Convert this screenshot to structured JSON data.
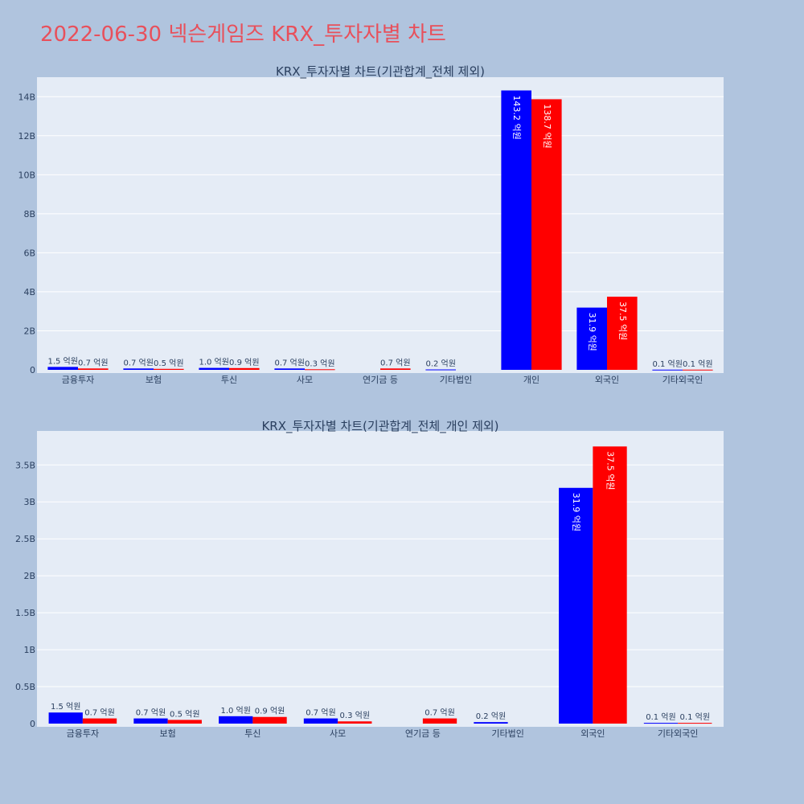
{
  "page": {
    "title": "2022-06-30 넥슨게임즈 KRX_투자자별 차트"
  },
  "colors": {
    "background": "#b0c4de",
    "plot_background": "#e5ecf6",
    "title": "#e8505b",
    "series_buy": "#0000ff",
    "series_sell": "#ff0000"
  },
  "chart_data": [
    {
      "type": "bar",
      "title": "KRX_투자자별 차트(기관합계_전체 제외)",
      "categories": [
        "금융투자",
        "보험",
        "투신",
        "사모",
        "연기금 등",
        "기타법인",
        "개인",
        "외국인",
        "기타외국인"
      ],
      "series": [
        {
          "color": "#0000ff",
          "values": [
            150000000,
            70000000,
            100000000,
            70000000,
            0,
            20000000,
            14320000000,
            3190000000,
            10000000
          ],
          "labels": [
            "1.5 억원",
            "0.7 억원",
            "1.0 억원",
            "0.7 억원",
            "",
            "0.2 억원",
            "143.2 억원",
            "31.9 억원",
            "0.1 억원"
          ]
        },
        {
          "color": "#ff0000",
          "values": [
            70000000,
            50000000,
            90000000,
            30000000,
            70000000,
            0,
            13870000000,
            3750000000,
            10000000
          ],
          "labels": [
            "0.7 억원",
            "0.5 억원",
            "0.9 억원",
            "0.3 억원",
            "0.7 억원",
            "",
            "138.7 억원",
            "37.5 억원",
            "0.1 억원"
          ]
        }
      ],
      "ylim": [
        0,
        15000000000
      ],
      "yticks": [
        0,
        2000000000,
        4000000000,
        6000000000,
        8000000000,
        10000000000,
        12000000000,
        14000000000
      ],
      "ytick_labels": [
        "0",
        "2B",
        "4B",
        "6B",
        "8B",
        "10B",
        "12B",
        "14B"
      ],
      "grid": true
    },
    {
      "type": "bar",
      "title": "KRX_투자자별 차트(기관합계_전체_개인 제외)",
      "categories": [
        "금융투자",
        "보험",
        "투신",
        "사모",
        "연기금 등",
        "기타법인",
        "외국인",
        "기타외국인"
      ],
      "series": [
        {
          "color": "#0000ff",
          "values": [
            150000000,
            70000000,
            100000000,
            70000000,
            0,
            20000000,
            3190000000,
            10000000
          ],
          "labels": [
            "1.5 억원",
            "0.7 억원",
            "1.0 억원",
            "0.7 억원",
            "",
            "0.2 억원",
            "31.9 억원",
            "0.1 억원"
          ]
        },
        {
          "color": "#ff0000",
          "values": [
            70000000,
            50000000,
            90000000,
            30000000,
            70000000,
            0,
            3750000000,
            10000000
          ],
          "labels": [
            "0.7 억원",
            "0.5 억원",
            "0.9 억원",
            "0.3 억원",
            "0.7 억원",
            "",
            "37.5 억원",
            "0.1 억원"
          ]
        }
      ],
      "ylim": [
        0,
        3960000000
      ],
      "yticks": [
        0,
        500000000,
        1000000000,
        1500000000,
        2000000000,
        2500000000,
        3000000000,
        3500000000
      ],
      "ytick_labels": [
        "0",
        "0.5B",
        "1B",
        "1.5B",
        "2B",
        "2.5B",
        "3B",
        "3.5B"
      ],
      "grid": true
    }
  ]
}
